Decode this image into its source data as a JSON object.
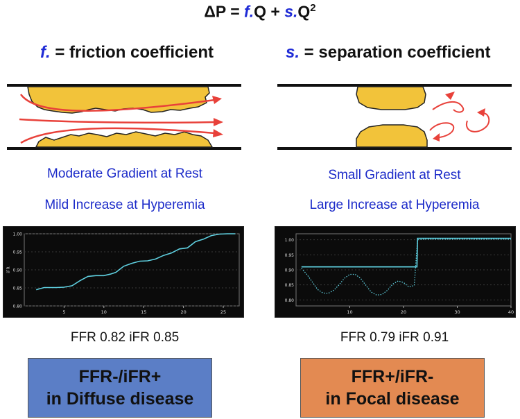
{
  "formula": {
    "prefix": "ΔP = ",
    "f_sym": "f.",
    "mid": "Q + ",
    "s_sym": "s.",
    "q_term": "Q",
    "exp": "2"
  },
  "left": {
    "coef_symbol": "f.",
    "coef_text": " = friction coefficient",
    "line1": "Moderate Gradient at Rest",
    "line2": "Mild Increase at Hyperemia",
    "result": "FFR 0.82 iFR 0.85",
    "box_line1": "FFR-/iFR+",
    "box_line2": "in Diffuse disease",
    "box_color": "#5b7ec6"
  },
  "right": {
    "coef_symbol": "s.",
    "coef_text": " = separation coefficient",
    "line1": "Small Gradient at Rest",
    "line2": "Large Increase at Hyperemia",
    "result": "FFR 0.79 iFR 0.91",
    "box_line1": "FFR+/iFR-",
    "box_line2": "in Focal disease",
    "box_color": "#e38a52"
  },
  "colors": {
    "plaque": "#f2c33a",
    "arrow": "#e8413a",
    "chart_bg": "#0b0b0b",
    "chart_line": "#5fd0e0",
    "accent_blue": "#1f2bd6"
  },
  "chart_data": [
    {
      "type": "line",
      "ylabel": "iFR",
      "xlim": [
        0,
        27
      ],
      "ylim": [
        0.8,
        1.0
      ],
      "xticks": [
        "5",
        "10",
        "15",
        "20",
        "25"
      ],
      "yticks": [
        "0.80",
        "0.85",
        "0.90",
        "0.95",
        "1.00"
      ],
      "series": [
        {
          "x": [
            1.5,
            2.5,
            4,
            5,
            6,
            7,
            8,
            9,
            10,
            10.8,
            11.5,
            12.5,
            13.5,
            14.5,
            15.5,
            16.5,
            17.5,
            18.5,
            19.5,
            20.5,
            21.5,
            22.5,
            23.5,
            24.5,
            25.5,
            26.5
          ],
          "y": [
            0.845,
            0.851,
            0.851,
            0.852,
            0.856,
            0.87,
            0.882,
            0.884,
            0.884,
            0.888,
            0.893,
            0.91,
            0.918,
            0.924,
            0.925,
            0.93,
            0.94,
            0.947,
            0.958,
            0.961,
            0.978,
            0.985,
            0.995,
            0.999,
            1.0,
            1.0
          ]
        }
      ]
    },
    {
      "type": "line",
      "xlim": [
        0,
        40
      ],
      "ylim": [
        0.78,
        1.02
      ],
      "xticks": [
        "10",
        "20",
        "30",
        "40"
      ],
      "yticks": [
        "0.80",
        "0.85",
        "0.90",
        "0.95",
        "1.00"
      ],
      "series": [
        {
          "style": "solid",
          "x": [
            1,
            22.5,
            22.6,
            40
          ],
          "y": [
            0.91,
            0.91,
            1.005,
            1.005
          ]
        },
        {
          "style": "dotted",
          "x": [
            1,
            2,
            3,
            4,
            5,
            6,
            7,
            8,
            9,
            10,
            11,
            12,
            13,
            14,
            15,
            16,
            17,
            18,
            19,
            20,
            21,
            22,
            22.6,
            24,
            28,
            32,
            36,
            40
          ],
          "y": [
            0.905,
            0.885,
            0.86,
            0.835,
            0.823,
            0.822,
            0.832,
            0.85,
            0.872,
            0.885,
            0.885,
            0.872,
            0.848,
            0.826,
            0.816,
            0.818,
            0.832,
            0.853,
            0.863,
            0.858,
            0.843,
            0.848,
            1.0,
            1.002,
            1.002,
            1.002,
            1.002,
            1.002
          ]
        }
      ]
    }
  ]
}
